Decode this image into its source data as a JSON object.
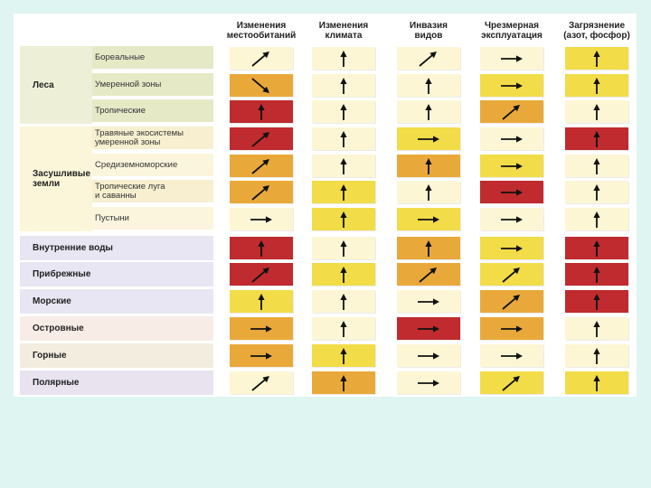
{
  "headers": [
    "Изменения\nместообитаний",
    "Изменения\nклимата",
    "Инвазия\nвидов",
    "Чрезмерная\nэксплуатация",
    "Загрязнение\n(азот, фосфор)"
  ],
  "legend_colors": {
    "low": "#fdf6d5",
    "moderate": "#f2dc48",
    "high": "#e9a93a",
    "very_high": "#bf2b2e"
  },
  "groups": [
    {
      "label": "Леса",
      "subs": [
        "Бореальные",
        "Умеренной зоны",
        "Тропические"
      ]
    },
    {
      "label": "Засушливые\nземли",
      "subs": [
        "Травяные экосистемы\nумеренной зоны",
        "Средиземноморские",
        "Тропические луга\nи саванны",
        "Пустыни"
      ]
    },
    {
      "label": "Внутренние воды",
      "subs": []
    },
    {
      "label": "Прибрежные",
      "subs": []
    },
    {
      "label": "Морские",
      "subs": []
    },
    {
      "label": "Островные",
      "subs": []
    },
    {
      "label": "Горные",
      "subs": []
    },
    {
      "label": "Полярные",
      "subs": []
    }
  ],
  "rows": [
    {
      "cells": [
        [
          "low",
          "ne"
        ],
        [
          "low",
          "up"
        ],
        [
          "low",
          "ne"
        ],
        [
          "low",
          "right"
        ],
        [
          "moderate",
          "up"
        ]
      ]
    },
    {
      "cells": [
        [
          "high",
          "se"
        ],
        [
          "low",
          "up"
        ],
        [
          "low",
          "up"
        ],
        [
          "moderate",
          "right"
        ],
        [
          "moderate",
          "up"
        ]
      ]
    },
    {
      "cells": [
        [
          "very_high",
          "up"
        ],
        [
          "low",
          "up"
        ],
        [
          "low",
          "up"
        ],
        [
          "high",
          "ne"
        ],
        [
          "low",
          "up"
        ]
      ]
    },
    {
      "cells": [
        [
          "very_high",
          "ne"
        ],
        [
          "low",
          "up"
        ],
        [
          "moderate",
          "right"
        ],
        [
          "low",
          "right"
        ],
        [
          "very_high",
          "up"
        ]
      ]
    },
    {
      "cells": [
        [
          "high",
          "ne"
        ],
        [
          "low",
          "up"
        ],
        [
          "high",
          "up"
        ],
        [
          "moderate",
          "right"
        ],
        [
          "low",
          "up"
        ]
      ]
    },
    {
      "cells": [
        [
          "high",
          "ne"
        ],
        [
          "moderate",
          "up"
        ],
        [
          "low",
          "up"
        ],
        [
          "very_high",
          "right"
        ],
        [
          "low",
          "up"
        ]
      ]
    },
    {
      "cells": [
        [
          "low",
          "right"
        ],
        [
          "moderate",
          "up"
        ],
        [
          "moderate",
          "right"
        ],
        [
          "low",
          "right"
        ],
        [
          "low",
          "up"
        ]
      ]
    },
    {
      "cells": [
        [
          "very_high",
          "up"
        ],
        [
          "low",
          "up"
        ],
        [
          "high",
          "up"
        ],
        [
          "moderate",
          "right"
        ],
        [
          "very_high",
          "up"
        ]
      ]
    },
    {
      "cells": [
        [
          "very_high",
          "ne"
        ],
        [
          "moderate",
          "up"
        ],
        [
          "high",
          "ne"
        ],
        [
          "moderate",
          "ne"
        ],
        [
          "very_high",
          "up"
        ]
      ]
    },
    {
      "cells": [
        [
          "moderate",
          "up"
        ],
        [
          "low",
          "up"
        ],
        [
          "low",
          "right"
        ],
        [
          "high",
          "ne"
        ],
        [
          "very_high",
          "up"
        ]
      ]
    },
    {
      "cells": [
        [
          "high",
          "right"
        ],
        [
          "low",
          "up"
        ],
        [
          "very_high",
          "right"
        ],
        [
          "high",
          "right"
        ],
        [
          "low",
          "up"
        ]
      ]
    },
    {
      "cells": [
        [
          "high",
          "right"
        ],
        [
          "moderate",
          "up"
        ],
        [
          "low",
          "right"
        ],
        [
          "low",
          "right"
        ],
        [
          "low",
          "up"
        ]
      ]
    },
    {
      "cells": [
        [
          "low",
          "ne"
        ],
        [
          "high",
          "up"
        ],
        [
          "low",
          "right"
        ],
        [
          "moderate",
          "ne"
        ],
        [
          "moderate",
          "up"
        ]
      ]
    }
  ]
}
